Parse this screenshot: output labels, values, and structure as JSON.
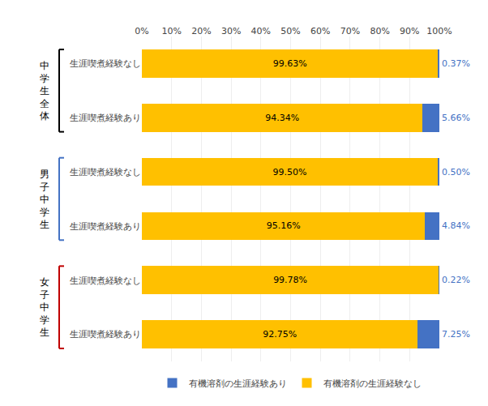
{
  "chart_data": {
    "type": "bar",
    "orientation": "horizontal",
    "stacked": true,
    "data_labels": true,
    "grid": true,
    "legend": "bottom",
    "categories": [
      "生涯喫煮経験なし",
      "生涯喫煮経験あり",
      "生涯喫煮経験なし",
      "生涯喫煮経験あり",
      "生涯喫煮経験なし",
      "生涯喫煮経験あり"
    ],
    "series": [
      {
        "name": "有機溶剤の生涯経験なし",
        "color": "#FFC000",
        "values": [
          99.63,
          94.34,
          99.5,
          95.16,
          99.78,
          92.75
        ],
        "value_labels": [
          "99.63%",
          "94.34%",
          "99.50%",
          "95.16%",
          "99.78%",
          "92.75%"
        ]
      },
      {
        "name": "有機溶剤の生涯経験あり",
        "color": "#4472C4",
        "values": [
          0.37,
          5.66,
          0.5,
          4.84,
          0.22,
          7.25
        ],
        "value_labels": [
          "0.37%",
          "5.66%",
          "0.50%",
          "4.84%",
          "0.22%",
          "7.25%"
        ]
      }
    ],
    "xlim": [
      0,
      100
    ],
    "xticks": [
      {
        "value": 0,
        "label": "0%"
      },
      {
        "value": 10,
        "label": "10%"
      },
      {
        "value": 20,
        "label": "20%"
      },
      {
        "value": 30,
        "label": "30%"
      },
      {
        "value": 40,
        "label": "40%"
      },
      {
        "value": 50,
        "label": "50%"
      },
      {
        "value": 60,
        "label": "60%"
      },
      {
        "value": 70,
        "label": "70%"
      },
      {
        "value": 80,
        "label": "80%"
      },
      {
        "value": 90,
        "label": "90%"
      },
      {
        "value": 100,
        "label": "100%"
      }
    ],
    "groups": [
      {
        "label": "中\n学\n生\n全\n体",
        "color": "#000000"
      },
      {
        "label": "男\n子\n中\n学\n生",
        "color": "#4472C4"
      },
      {
        "label": "女\n子\n中\n学\n生",
        "color": "#C00000"
      }
    ]
  }
}
